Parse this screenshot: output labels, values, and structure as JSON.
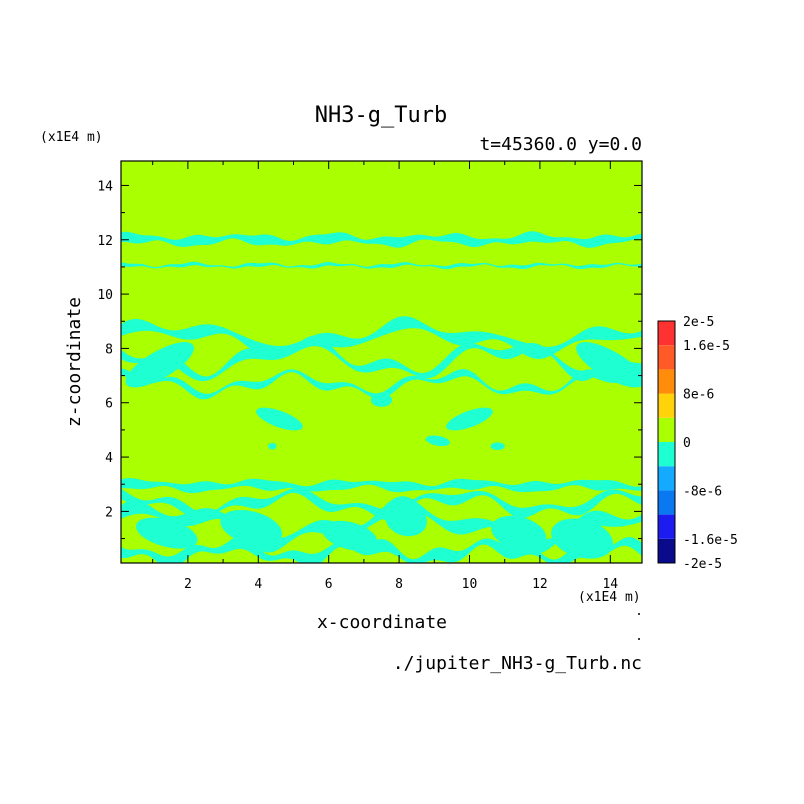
{
  "chart_data": {
    "type": "heatmap",
    "title": "NH3-g_Turb",
    "subtitle": "t=45360.0 y=0.0",
    "xlabel": "x-coordinate",
    "ylabel": "z-coordinate",
    "x_unit": "(x1E4 m)",
    "y_unit": "(x1E4 m)",
    "source_file": "./jupiter_NH3-g_Turb.nc",
    "xlim": [
      0.1,
      14.9
    ],
    "ylim": [
      0.1,
      14.9
    ],
    "x_ticks": [
      "2",
      "4",
      "6",
      "8",
      "10",
      "12",
      "14"
    ],
    "y_ticks": [
      "2",
      "4",
      "6",
      "8",
      "10",
      "12",
      "14"
    ],
    "colorbar": {
      "range": [
        -2e-05,
        2e-05
      ],
      "levels": [
        -2e-05,
        -1.6e-05,
        -1.2e-05,
        -8e-06,
        -4e-06,
        0,
        4e-06,
        8e-06,
        1.2e-05,
        1.6e-05,
        2e-05
      ],
      "colors": [
        "#0a0a8c",
        "#1c1cf0",
        "#0a78f0",
        "#14aaff",
        "#1effd2",
        "#aaff00",
        "#ffd20a",
        "#ff8c0a",
        "#ff5a28",
        "#ff3232"
      ],
      "tick_labels": [
        {
          "value": 2e-05,
          "label": "2e-5"
        },
        {
          "value": 1.6e-05,
          "label": "1.6e-5"
        },
        {
          "value": 8e-06,
          "label": "8e-6"
        },
        {
          "value": 0,
          "label": "0"
        },
        {
          "value": -8e-06,
          "label": "-8e-6"
        },
        {
          "value": -1.6e-05,
          "label": "-1.6e-5"
        },
        {
          "value": -2e-05,
          "label": "-2e-5"
        }
      ]
    },
    "background_level": "0 to 4e-6",
    "feature_level": "-4e-6 to 0",
    "feature_regions_note": "cyan turbulent band at z≈12, wavy structures at z≈6–9, band at z≈3, eddies below z≈3"
  }
}
